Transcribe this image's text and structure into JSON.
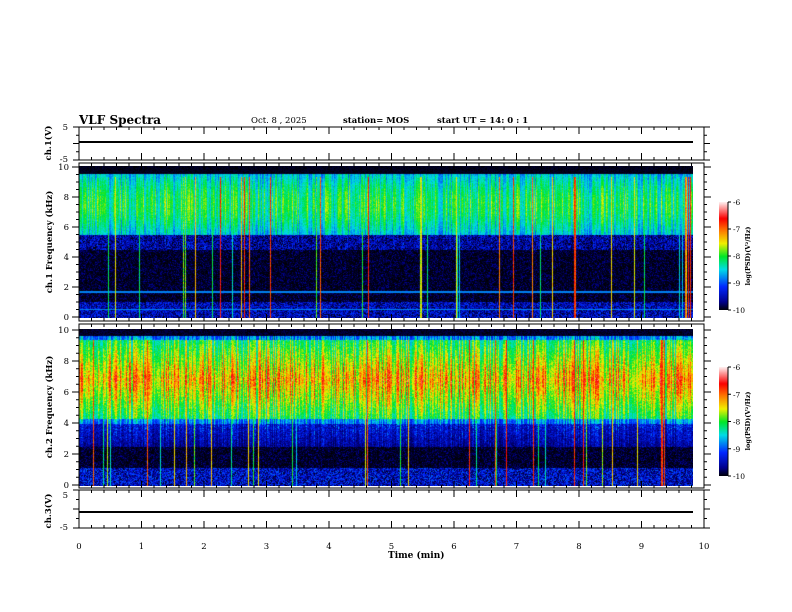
{
  "header": {
    "title": "VLF Spectra",
    "date": "Oct. 8 , 2025",
    "station": "station= MOS",
    "start": "start  UT =   14: 0  : 1"
  },
  "chart_data": {
    "type": "heatmap",
    "xlabel": "Time (min)",
    "xlim": [
      0,
      10
    ],
    "xticks": [
      "0",
      "1",
      "2",
      "3",
      "4",
      "5",
      "6",
      "7",
      "8",
      "9",
      "10"
    ],
    "panels": [
      {
        "name": "ch1-waveform",
        "ylabel": "ch.1(V)",
        "ylim": [
          -5,
          5
        ],
        "yticks": [
          "5",
          "-5"
        ]
      },
      {
        "name": "ch1-spectrogram",
        "ylabel": "ch.1 Frequency (kHz)",
        "ylim": [
          0,
          10
        ],
        "yticks": [
          "0",
          "2",
          "4",
          "6",
          "8",
          "10"
        ],
        "dominant_band_khz": [
          6,
          9.5
        ],
        "peak_log_psd": -8,
        "colorbar": {
          "label": "log(PSD)(V²/Hz)",
          "range": [
            -10,
            -6
          ],
          "ticks": [
            "-6",
            "-7",
            "-8",
            "-9",
            "-10"
          ]
        }
      },
      {
        "name": "ch2-spectrogram",
        "ylabel": "ch.2 Frequency (kHz)",
        "ylim": [
          0,
          10
        ],
        "yticks": [
          "0",
          "2",
          "4",
          "6",
          "8",
          "10"
        ],
        "dominant_band_khz": [
          4,
          9.5
        ],
        "peak_log_psd": -7,
        "colorbar": {
          "label": "log(PSD)(V²/Hz)",
          "range": [
            -10,
            -6
          ],
          "ticks": [
            "-6",
            "-7",
            "-8",
            "-9",
            "-10"
          ]
        }
      },
      {
        "name": "ch3-waveform",
        "ylabel": "ch.3(V)",
        "ylim": [
          -5,
          5
        ],
        "yticks": [
          "5",
          "-5"
        ]
      }
    ]
  }
}
